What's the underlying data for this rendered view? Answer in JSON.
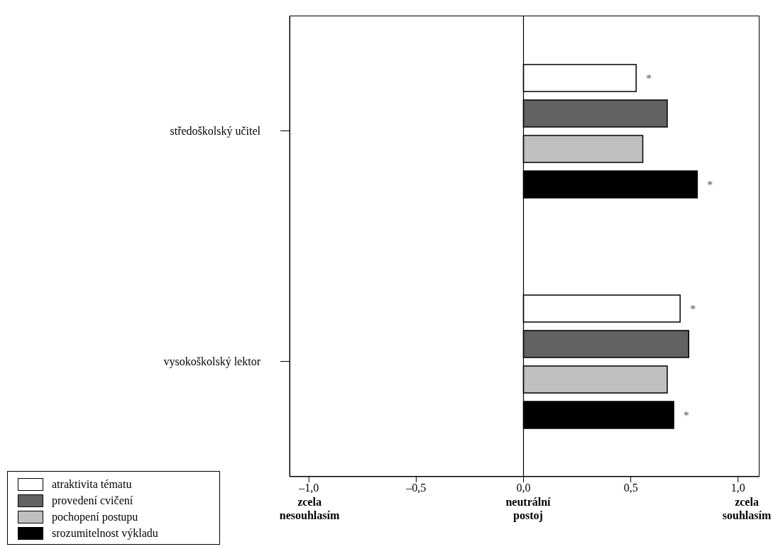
{
  "chart_data": {
    "type": "bar",
    "orientation": "horizontal",
    "categories": [
      "středoškolský učitel",
      "vysokoškolský lektor"
    ],
    "series": [
      {
        "name": "atraktivita tématu",
        "color": "#ffffff",
        "values": [
          0.525,
          0.73
        ],
        "value_labels": [
          "*",
          "*"
        ]
      },
      {
        "name": "provedení cvičení",
        "color": "#626262",
        "values": [
          0.67,
          0.77
        ]
      },
      {
        "name": "pochopení postupu",
        "color": "#bfbfbf",
        "values": [
          0.556,
          0.67
        ]
      },
      {
        "name": "srozumitelnost výkladu",
        "color": "#000000",
        "values": [
          0.81,
          0.7
        ],
        "value_labels": [
          "*",
          "*"
        ]
      }
    ],
    "xlim": [
      -1.09,
      1.1
    ],
    "xticks": [
      {
        "value": -1,
        "label": "–1,0"
      },
      {
        "value": -0.5,
        "label": "–0,5"
      },
      {
        "value": 0,
        "label": "0,0"
      },
      {
        "value": 0.5,
        "label": "0,5"
      },
      {
        "value": 1,
        "label": "1,0"
      }
    ],
    "ref_lines": [
      {
        "axis": "x",
        "value": 0
      }
    ],
    "annotations": [
      "zcela nesouhlasím",
      "neutrální postoj",
      "zcela souhlasím"
    ],
    "legend": "bottom left",
    "grid": false
  }
}
